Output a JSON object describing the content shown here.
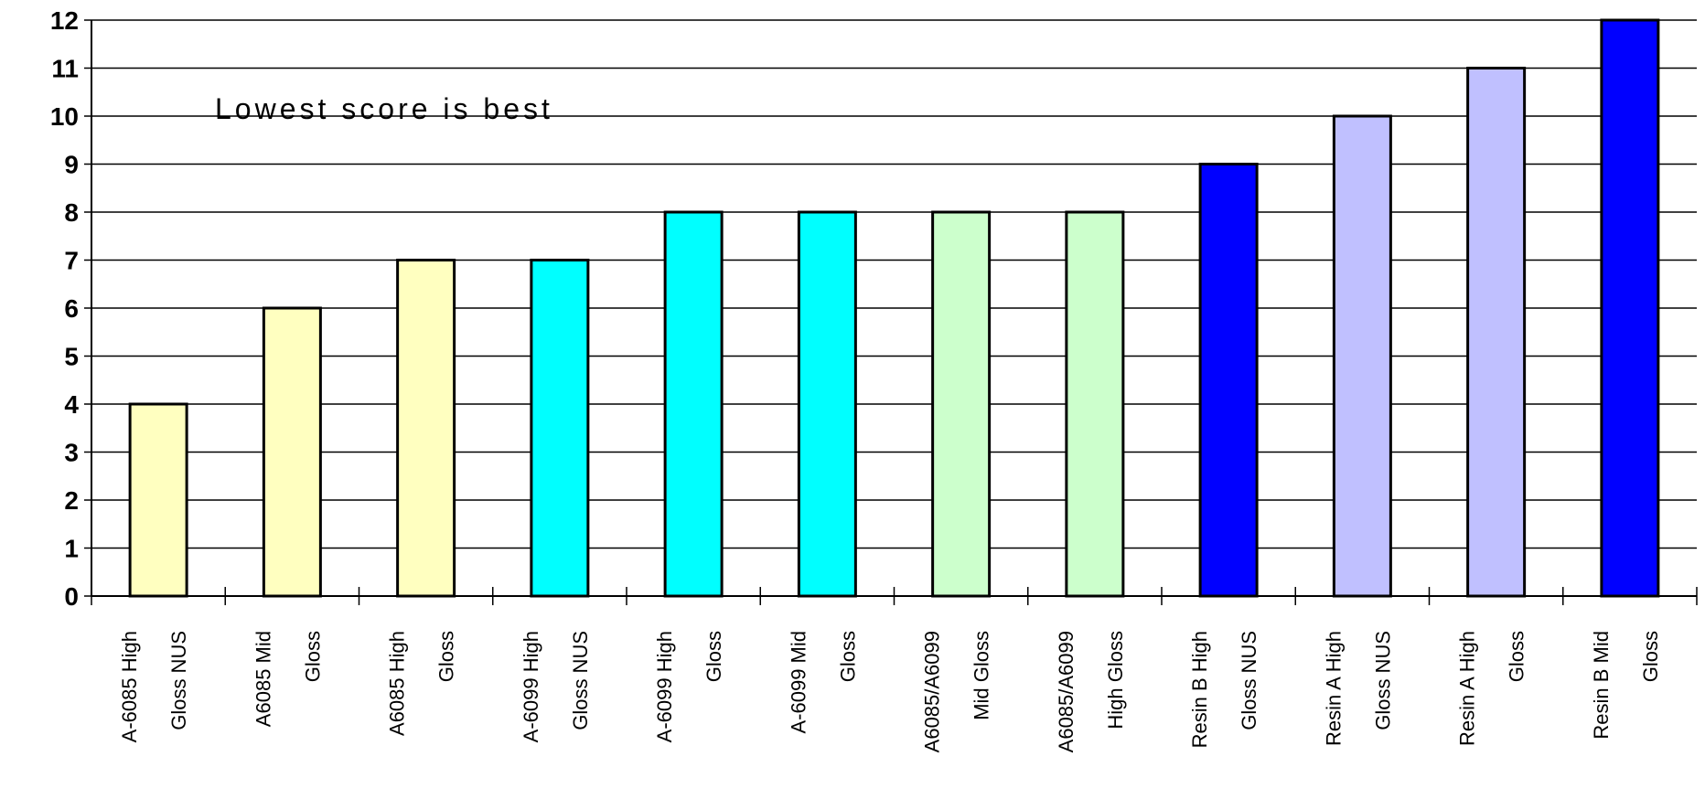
{
  "chart_data": {
    "type": "bar",
    "title": "",
    "xlabel": "",
    "ylabel": "",
    "ylim": [
      0,
      12
    ],
    "yticks": [
      0,
      1,
      2,
      3,
      4,
      5,
      6,
      7,
      8,
      9,
      10,
      11,
      12
    ],
    "grid": true,
    "annotation": "Lowest score is best",
    "categories": [
      [
        "A-6085 High",
        "Gloss NUS"
      ],
      [
        "A6085 Mid",
        "Gloss"
      ],
      [
        "A6085 High",
        "Gloss"
      ],
      [
        "A-6099 High",
        "Gloss  NUS"
      ],
      [
        "A-6099 High",
        "Gloss"
      ],
      [
        "A-6099 Mid",
        "Gloss"
      ],
      [
        "A6085/A6099",
        "Mid Gloss"
      ],
      [
        "A6085/A6099",
        "High Gloss"
      ],
      [
        "Resin B High",
        "Gloss NUS"
      ],
      [
        "Resin A High",
        "Gloss NUS"
      ],
      [
        "Resin A High",
        "Gloss"
      ],
      [
        "Resin B Mid",
        "Gloss"
      ]
    ],
    "values": [
      4,
      6,
      7,
      7,
      8,
      8,
      8,
      8,
      9,
      10,
      11,
      12
    ],
    "colors": [
      "#FFFFC0",
      "#FFFFC0",
      "#FFFFC0",
      "#00FFFF",
      "#00FFFF",
      "#00FFFF",
      "#CCFFCC",
      "#CCFFCC",
      "#0000FF",
      "#C0C0FF",
      "#C0C0FF",
      "#0000FF"
    ]
  }
}
